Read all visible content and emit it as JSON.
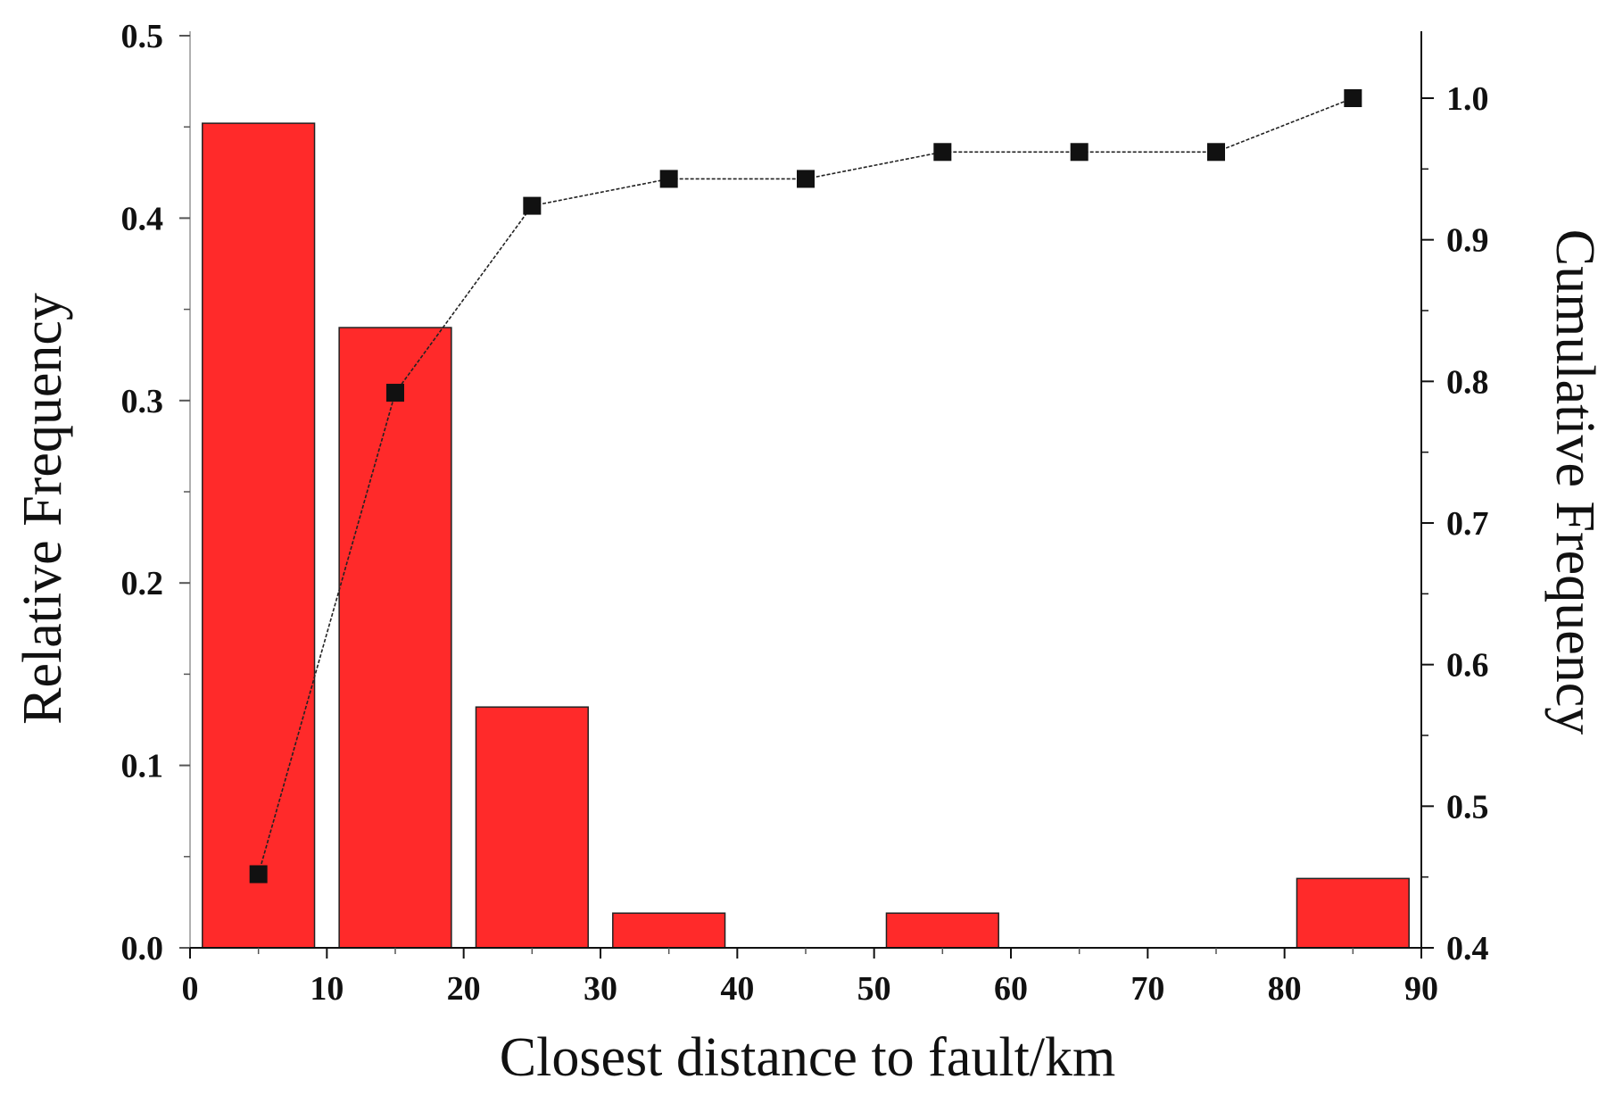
{
  "chart_data": {
    "type": "bar",
    "title": "",
    "xlabel": "Closest distance to fault/km",
    "ylabel": "Relative Frequency",
    "y2label": "Cumulative Frequency",
    "xlim": [
      0,
      90
    ],
    "ylim": [
      0,
      0.5
    ],
    "y2lim": [
      0.4,
      1.0
    ],
    "x_ticks": [
      "0",
      "10",
      "20",
      "30",
      "40",
      "50",
      "60",
      "70",
      "80",
      "90"
    ],
    "y_ticks": [
      "0.0",
      "0.1",
      "0.2",
      "0.3",
      "0.4",
      "0.5"
    ],
    "y2_ticks": [
      "0.4",
      "0.5",
      "0.6",
      "0.7",
      "0.8",
      "0.9",
      "1.0"
    ],
    "grid": false,
    "bar_series": {
      "color": "#ff2a2a",
      "bins": [
        {
          "from": 0,
          "to": 10,
          "value": 0.452
        },
        {
          "from": 10,
          "to": 20,
          "value": 0.34
        },
        {
          "from": 20,
          "to": 30,
          "value": 0.132
        },
        {
          "from": 30,
          "to": 40,
          "value": 0.019
        },
        {
          "from": 50,
          "to": 60,
          "value": 0.019
        },
        {
          "from": 80,
          "to": 90,
          "value": 0.038
        }
      ]
    },
    "line_series": {
      "axis": "right",
      "marker": "square",
      "color": "#111111",
      "x": [
        5,
        15,
        25,
        35,
        45,
        55,
        65,
        75,
        85
      ],
      "y": [
        0.452,
        0.792,
        0.924,
        0.943,
        0.943,
        0.962,
        0.962,
        0.962,
        1.0
      ]
    }
  }
}
